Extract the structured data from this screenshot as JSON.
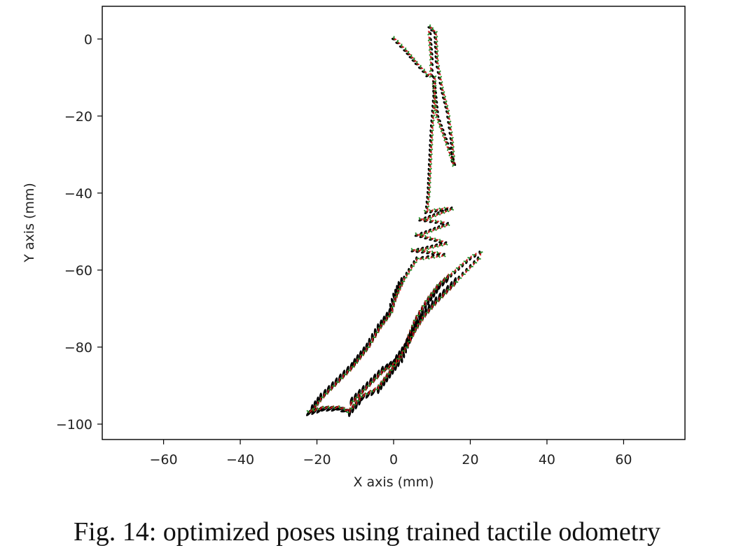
{
  "caption": "Fig. 14: optimized poses using trained tactile odometry",
  "chart_data": {
    "type": "scatter",
    "title": "",
    "xlabel": "X axis (mm)",
    "ylabel": "Y axis (mm)",
    "xlim": [
      -76,
      76
    ],
    "ylim": [
      -104,
      8.5
    ],
    "xticks": [
      -60,
      -40,
      -20,
      0,
      20,
      40,
      60
    ],
    "yticks": [
      0,
      -20,
      -40,
      -60,
      -80,
      -100
    ],
    "xtick_labels": [
      "−60",
      "−40",
      "−20",
      "0",
      "20",
      "40",
      "60"
    ],
    "ytick_labels": [
      "0",
      "−20",
      "−40",
      "−60",
      "−80",
      "−100"
    ],
    "grid": false,
    "colors": {
      "pose_body": "#000000",
      "pose_red": "#e41a1c",
      "pose_green": "#228b22"
    },
    "trajectory": [
      [
        0,
        0
      ],
      [
        3,
        -3
      ],
      [
        6,
        -6.5
      ],
      [
        8.8,
        -9.5
      ],
      [
        10,
        -9.5
      ],
      [
        10,
        -5
      ],
      [
        9.6,
        0
      ],
      [
        9.4,
        3
      ],
      [
        10.8,
        1.5
      ],
      [
        11.2,
        -6
      ],
      [
        12.5,
        -13
      ],
      [
        14,
        -19
      ],
      [
        15,
        -26
      ],
      [
        15.5,
        -32
      ],
      [
        15.8,
        -32.5
      ],
      [
        14,
        -27
      ],
      [
        11.5,
        -20
      ],
      [
        10.5,
        -10
      ],
      [
        10.5,
        -15
      ],
      [
        9.8,
        -24
      ],
      [
        9.3,
        -34
      ],
      [
        9,
        -40
      ],
      [
        8.5,
        -45
      ],
      [
        15,
        -44
      ],
      [
        7,
        -47
      ],
      [
        14,
        -48
      ],
      [
        6,
        -51
      ],
      [
        13.5,
        -53
      ],
      [
        5,
        -55
      ],
      [
        13,
        -56
      ],
      [
        6,
        -57
      ],
      [
        4,
        -60
      ],
      [
        1.5,
        -64
      ],
      [
        0.2,
        -67
      ],
      [
        -1,
        -71
      ],
      [
        -4,
        -75
      ],
      [
        -7,
        -80
      ],
      [
        -11,
        -85
      ],
      [
        -15,
        -89
      ],
      [
        -19,
        -93
      ],
      [
        -22,
        -97
      ],
      [
        -18,
        -96
      ],
      [
        -14,
        -96
      ],
      [
        -11.5,
        -97
      ],
      [
        -8,
        -93
      ],
      [
        -4,
        -91
      ],
      [
        -1,
        -87
      ],
      [
        2,
        -83
      ],
      [
        4,
        -78
      ],
      [
        6,
        -73
      ],
      [
        9,
        -68
      ],
      [
        12,
        -64
      ],
      [
        16,
        -60.5
      ],
      [
        20,
        -57
      ],
      [
        22.5,
        -55.5
      ],
      [
        22,
        -57
      ],
      [
        19,
        -60
      ],
      [
        15,
        -64
      ],
      [
        11,
        -68
      ],
      [
        7.5,
        -72
      ],
      [
        5,
        -76
      ],
      [
        3,
        -80
      ],
      [
        0,
        -84
      ],
      [
        -3,
        -86
      ],
      [
        -6,
        -89
      ],
      [
        -9,
        -92
      ],
      [
        -12,
        -95
      ]
    ]
  }
}
